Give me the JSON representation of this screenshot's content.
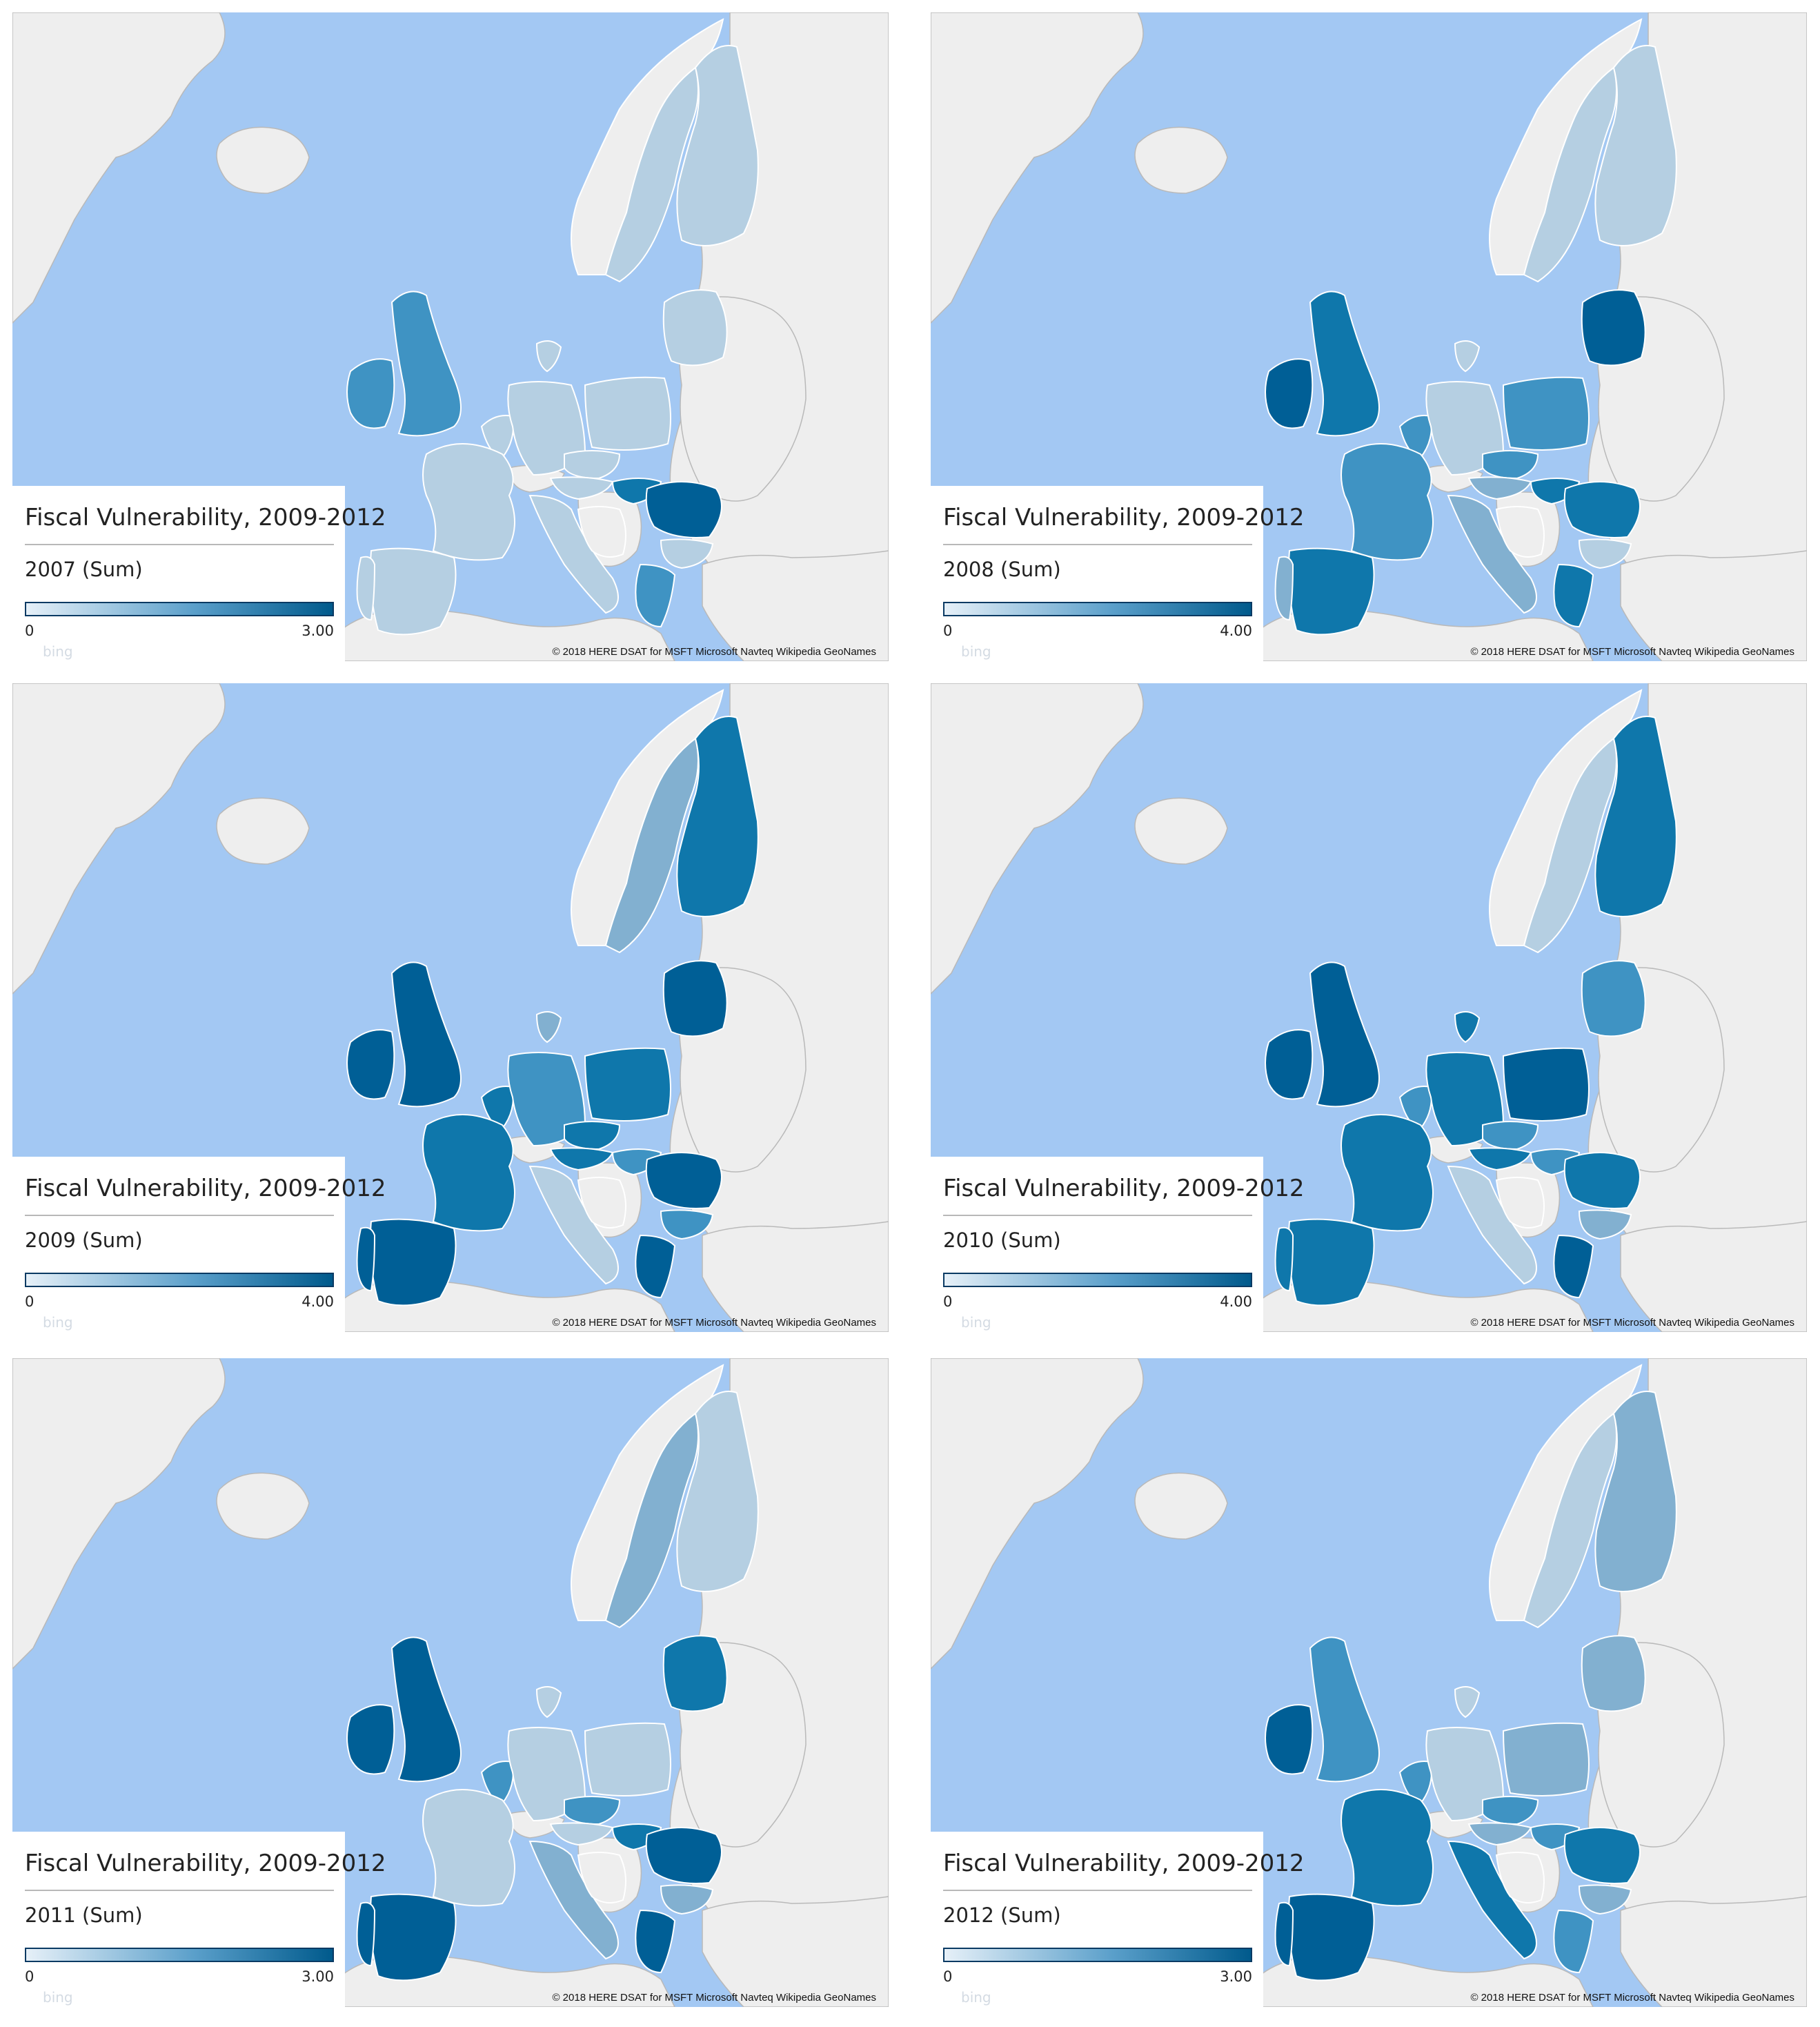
{
  "colors": {
    "water": "#a3c8f3",
    "land": "#eeeeee",
    "border": "#b9b9b9",
    "outline": "#ffffff",
    "scale": [
      "#dbe7f1",
      "#b5cfe2",
      "#82b0d0",
      "#3f93c3",
      "#0f77ab",
      "#005f96"
    ]
  },
  "maps": [
    {
      "title": "Fiscal Vulnerability, 2009-2012",
      "field": "2007 (Sum)",
      "min_label": "0",
      "max_label": "3.00",
      "max": 3,
      "bing": "bing",
      "copyright": "© 2018 HERE  DSAT for MSFT  Microsoft  Navteq  Wikipedia  GeoNames",
      "countries": {
        "NOR": 0,
        "SWE": 0.4,
        "FIN": 0.4,
        "IRL": 1.5,
        "GBR": 1.5,
        "FRA": 0.4,
        "ESP": 0.4,
        "PRT": 0.4,
        "DEU": 0.4,
        "POL": 0.4,
        "ITA": 0.4,
        "GRC": 1.8,
        "ROU": 2.7,
        "HUN": 2.1,
        "BGR": 0.4,
        "BALT": 0.4,
        "CZE": 0.4,
        "AUT": 0.4,
        "BEN": 0.4,
        "DNK": 0.4,
        "BALK": 0
      }
    },
    {
      "title": "Fiscal Vulnerability, 2009-2012",
      "field": "2008 (Sum)",
      "min_label": "0",
      "max_label": "4.00",
      "max": 4,
      "bing": "bing",
      "copyright": "© 2018 HERE  DSAT for MSFT  Microsoft  Navteq  Wikipedia  GeoNames",
      "countries": {
        "NOR": 0,
        "SWE": 0.5,
        "FIN": 0.5,
        "IRL": 4,
        "GBR": 3.5,
        "FRA": 2.2,
        "ESP": 3.0,
        "PRT": 1.4,
        "DEU": 0.6,
        "POL": 2.4,
        "ITA": 1.6,
        "GRC": 3.4,
        "ROU": 3.2,
        "HUN": 2.8,
        "BGR": 0.6,
        "BALT": 3.6,
        "CZE": 2.4,
        "AUT": 1.2,
        "BEN": 2.0,
        "DNK": 0.6,
        "BALK": 0
      }
    },
    {
      "title": "Fiscal Vulnerability, 2009-2012",
      "field": "2009 (Sum)",
      "min_label": "0",
      "max_label": "4.00",
      "max": 4,
      "bing": "bing",
      "copyright": "© 2018 HERE  DSAT for MSFT  Microsoft  Navteq  Wikipedia  GeoNames",
      "countries": {
        "NOR": 0,
        "SWE": 1.5,
        "FIN": 3.0,
        "IRL": 4,
        "GBR": 3.6,
        "FRA": 3.0,
        "ESP": 3.8,
        "PRT": 3.6,
        "DEU": 2.4,
        "POL": 3.0,
        "ITA": 0.6,
        "GRC": 3.6,
        "ROU": 3.6,
        "HUN": 2.0,
        "BGR": 2.0,
        "BALT": 3.6,
        "CZE": 3.2,
        "AUT": 3.0,
        "BEN": 3.4,
        "DNK": 1.5,
        "BALK": 0
      }
    },
    {
      "title": "Fiscal Vulnerability, 2009-2012",
      "field": "2010 (Sum)",
      "min_label": "0",
      "max_label": "4.00",
      "max": 4,
      "bing": "bing",
      "copyright": "© 2018 HERE  DSAT for MSFT  Microsoft  Navteq  Wikipedia  GeoNames",
      "countries": {
        "NOR": 0,
        "SWE": 0.4,
        "FIN": 3.2,
        "IRL": 3.8,
        "GBR": 3.6,
        "FRA": 3.2,
        "ESP": 3.2,
        "PRT": 3.0,
        "DEU": 3.0,
        "POL": 3.6,
        "ITA": 0.6,
        "GRC": 3.6,
        "ROU": 3.0,
        "HUN": 2.0,
        "BGR": 1.8,
        "BALT": 2.0,
        "CZE": 2.0,
        "AUT": 3.2,
        "BEN": 2.4,
        "DNK": 3.0,
        "BALK": 0
      }
    },
    {
      "title": "Fiscal Vulnerability, 2009-2012",
      "field": "2011 (Sum)",
      "min_label": "0",
      "max_label": "3.00",
      "max": 3,
      "bing": "bing",
      "copyright": "© 2018 HERE  DSAT for MSFT  Microsoft  Navteq  Wikipedia  GeoNames",
      "countries": {
        "NOR": 0,
        "SWE": 1.4,
        "FIN": 0.5,
        "IRL": 3,
        "GBR": 3,
        "FRA": 0.4,
        "ESP": 2.8,
        "PRT": 3,
        "DEU": 0.4,
        "POL": 0.4,
        "ITA": 1.2,
        "GRC": 2.8,
        "ROU": 2.7,
        "HUN": 2.2,
        "BGR": 1.4,
        "BALT": 2.4,
        "CZE": 2.0,
        "AUT": 0.4,
        "BEN": 2.0,
        "DNK": 0.4,
        "BALK": 0
      }
    },
    {
      "title": "Fiscal Vulnerability, 2009-2012",
      "field": "2012 (Sum)",
      "min_label": "0",
      "max_label": "3.00",
      "max": 3,
      "bing": "bing",
      "copyright": "© 2018 HERE  DSAT for MSFT  Microsoft  Navteq  Wikipedia  GeoNames",
      "countries": {
        "NOR": 0,
        "SWE": 0.4,
        "FIN": 1.2,
        "IRL": 3,
        "GBR": 2.0,
        "FRA": 2.2,
        "ESP": 2.8,
        "PRT": 2.8,
        "DEU": 0.6,
        "POL": 1.4,
        "ITA": 2.2,
        "GRC": 2.0,
        "ROU": 2.2,
        "HUN": 1.8,
        "BGR": 1.4,
        "BALT": 1.4,
        "CZE": 2.0,
        "AUT": 1.4,
        "BEN": 2.0,
        "DNK": 0.4,
        "BALK": 0
      }
    }
  ]
}
